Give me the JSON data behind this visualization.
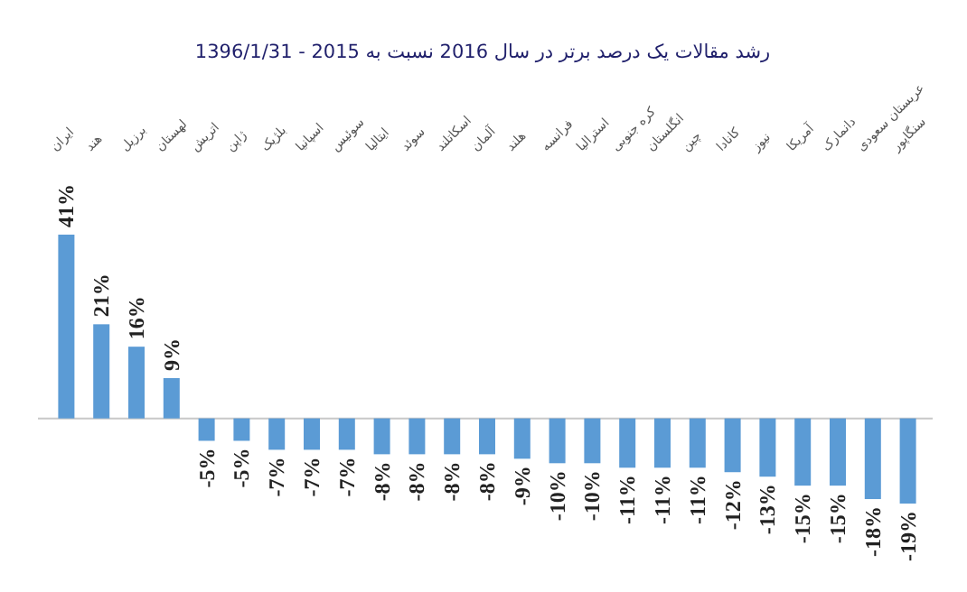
{
  "chart_data": {
    "type": "bar",
    "title": "رشد مقالات یک درصد برتر در سال 2016 نسبت به 2015 - 1396/1/31",
    "categories": [
      "ایران",
      "هند",
      "برزیل",
      "لهستان",
      "اتریش",
      "ژاپن",
      "بلژیک",
      "اسپانیا",
      "سوئیس",
      "ایتالیا",
      "سوئد",
      "اسکاتلند",
      "آلمان",
      "هلند",
      "فرانسه",
      "استرالیا",
      "کره جنوبی",
      "انگلستان",
      "چین",
      "کانادا",
      "نیوز",
      "آمریکا",
      "دانمارک",
      "عربستان سعودی",
      "سنگاپور"
    ],
    "values": [
      41,
      21,
      16,
      9,
      -5,
      -5,
      -7,
      -7,
      -7,
      -8,
      -8,
      -8,
      -8,
      -9,
      -10,
      -10,
      -11,
      -11,
      -11,
      -12,
      -13,
      -15,
      -15,
      -18,
      -19
    ],
    "value_labels": [
      "41%",
      "21%",
      "16%",
      "9%",
      "-5%",
      "-5%",
      "-7%",
      "-7%",
      "-7%",
      "-8%",
      "-8%",
      "-8%",
      "-8%",
      "-9%",
      "-10%",
      "-10%",
      "-11%",
      "-11%",
      "-11%",
      "-12%",
      "-13%",
      "-15%",
      "-15%",
      "-18%",
      "-19%"
    ],
    "color": "#5b9bd5"
  }
}
